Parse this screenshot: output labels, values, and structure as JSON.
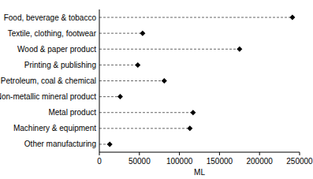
{
  "chart_data": {
    "type": "dot",
    "orientation": "horizontal",
    "categories": [
      "Food, beverage & tobacco",
      "Textile, clothing, footwear",
      "Wood & paper product",
      "Printing & publishing",
      "Petroleum, coal & chemical",
      "Non-metallic mineral product",
      "Metal product",
      "Machinery & equipment",
      "Other manufacturing"
    ],
    "values": [
      241000,
      54000,
      175000,
      48000,
      81000,
      26000,
      117000,
      113000,
      13000
    ],
    "x_label": "ML",
    "xlim": [
      0,
      250000
    ],
    "xticks": [
      0,
      50000,
      100000,
      150000,
      200000,
      250000
    ],
    "color": "#000000",
    "marker": "diamond",
    "line_style": "dashed",
    "grid": false
  }
}
